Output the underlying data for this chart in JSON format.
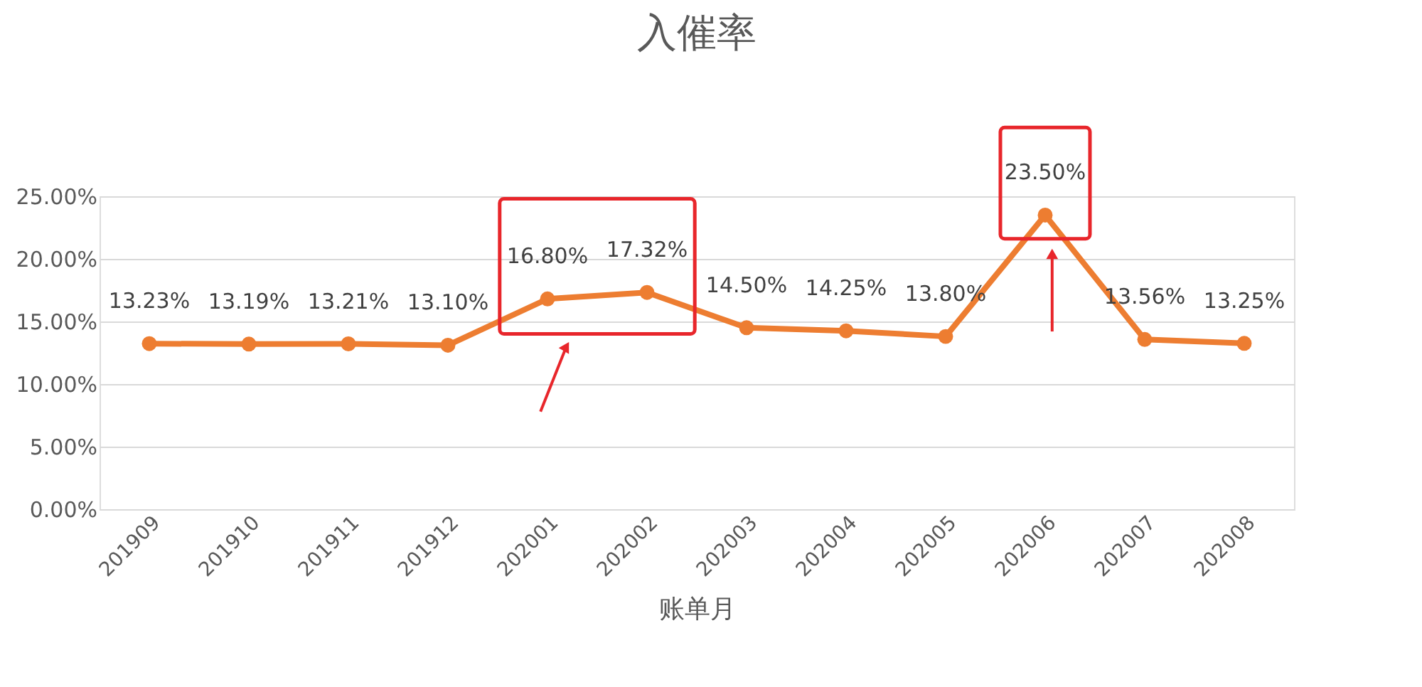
{
  "chart_data": {
    "type": "line",
    "title": "入催率",
    "xlabel": "账单月",
    "categories": [
      "201909",
      "201910",
      "201911",
      "201912",
      "202001",
      "202002",
      "202003",
      "202004",
      "202005",
      "202006",
      "202007",
      "202008"
    ],
    "series": [
      {
        "color": "#ed7d31",
        "values": [
          13.23,
          13.19,
          13.21,
          13.1,
          16.8,
          17.32,
          14.5,
          14.25,
          13.8,
          23.5,
          13.56,
          13.25
        ],
        "value_labels": [
          "13.23%",
          "13.19%",
          "13.21%",
          "13.10%",
          "16.80%",
          "17.32%",
          "14.50%",
          "14.25%",
          "13.80%",
          "23.50%",
          "13.56%",
          "13.25%"
        ]
      }
    ],
    "ylim": [
      0,
      25
    ],
    "yticks": [
      {
        "value": 0,
        "label": "0.00%"
      },
      {
        "value": 5,
        "label": "5.00%"
      },
      {
        "value": 10,
        "label": "10.00%"
      },
      {
        "value": 15,
        "label": "15.00%"
      },
      {
        "value": 20,
        "label": "20.00%"
      },
      {
        "value": 25,
        "label": "25.00%"
      }
    ],
    "grid": "y",
    "marker": "circle",
    "line_style": "solid"
  }
}
